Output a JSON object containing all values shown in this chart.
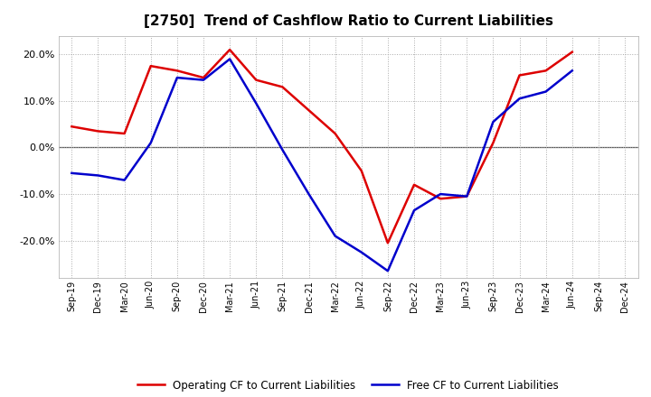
{
  "title": "[2750]  Trend of Cashflow Ratio to Current Liabilities",
  "x_labels": [
    "Sep-19",
    "Dec-19",
    "Mar-20",
    "Jun-20",
    "Sep-20",
    "Dec-20",
    "Mar-21",
    "Jun-21",
    "Sep-21",
    "Dec-21",
    "Mar-22",
    "Jun-22",
    "Sep-22",
    "Dec-22",
    "Mar-23",
    "Jun-23",
    "Sep-23",
    "Dec-23",
    "Mar-24",
    "Jun-24",
    "Sep-24",
    "Dec-24"
  ],
  "operating_cf_x": [
    0,
    1,
    2,
    3,
    4,
    5,
    6,
    7,
    8,
    9,
    10,
    11,
    12,
    13,
    14,
    15,
    16,
    17,
    18,
    19
  ],
  "free_cf_x": [
    0,
    1,
    2,
    3,
    4,
    5,
    6,
    7,
    8,
    9,
    10,
    11,
    12,
    13,
    14,
    15,
    16,
    17,
    18,
    19
  ],
  "operating_cf_values": [
    4.5,
    3.5,
    3.0,
    17.5,
    16.5,
    15.0,
    21.0,
    14.5,
    13.0,
    8.0,
    3.0,
    -5.0,
    -20.5,
    -8.0,
    -11.0,
    -10.5,
    1.0,
    15.5,
    16.5,
    20.5
  ],
  "free_cf_values": [
    -5.5,
    -6.0,
    -7.0,
    1.0,
    15.0,
    14.5,
    19.0,
    9.5,
    -0.5,
    -10.0,
    -19.0,
    -22.5,
    -26.5,
    -13.5,
    -10.0,
    -10.5,
    5.5,
    10.5,
    12.0,
    16.5
  ],
  "operating_color": "#dd0000",
  "free_color": "#0000cc",
  "ylim_min": -28,
  "ylim_max": 24,
  "yticks": [
    -20.0,
    -10.0,
    0.0,
    10.0,
    20.0
  ],
  "legend_op": "Operating CF to Current Liabilities",
  "legend_free": "Free CF to Current Liabilities",
  "background_color": "#ffffff",
  "grid_color": "#aaaaaa",
  "title_fontsize": 11,
  "tick_fontsize": 7
}
